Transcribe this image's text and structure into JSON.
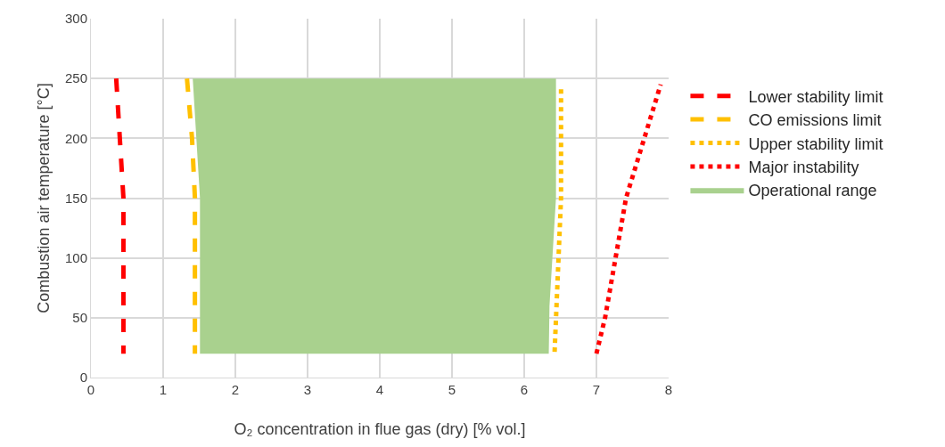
{
  "chart_data": {
    "type": "line",
    "xlabel": "O₂ concentration in flue gas (dry) [% vol.]",
    "ylabel": "Combustion air temperature [°C]",
    "xlim": [
      0,
      8
    ],
    "xticks": [
      0,
      1,
      2,
      3,
      4,
      5,
      6,
      7,
      8
    ],
    "ylim": [
      0,
      300
    ],
    "yticks": [
      0,
      50,
      100,
      150,
      200,
      250,
      300
    ],
    "grid": true,
    "legend": "right",
    "series": [
      {
        "name": "Lower stability limit",
        "line_style": "dashed",
        "color": "#ff0000",
        "x": [
          0.35,
          0.4,
          0.45,
          0.45
        ],
        "values": [
          250,
          200,
          150,
          20
        ]
      },
      {
        "name": "CO emissions limit",
        "line_style": "dashed",
        "color": "#ffc000",
        "x": [
          1.33,
          1.4,
          1.44,
          1.44
        ],
        "values": [
          250,
          200,
          150,
          20
        ]
      },
      {
        "name": "Upper stability limit",
        "line_style": "dotted",
        "color": "#ffc000",
        "x": [
          6.51,
          6.51,
          6.42
        ],
        "values": [
          241,
          150,
          20
        ]
      },
      {
        "name": "Major instability",
        "line_style": "dotted",
        "color": "#ff0000",
        "x": [
          7.0,
          7.12,
          7.41,
          7.89
        ],
        "values": [
          20,
          50,
          150,
          245
        ]
      },
      {
        "name": "Operational range",
        "type": "area",
        "color": "#a9d18e",
        "x": [
          1.41,
          1.51,
          1.51,
          6.34,
          6.35,
          6.44,
          6.44,
          1.41
        ],
        "values": [
          250,
          150,
          20,
          20,
          60,
          150,
          250,
          250
        ]
      }
    ]
  }
}
